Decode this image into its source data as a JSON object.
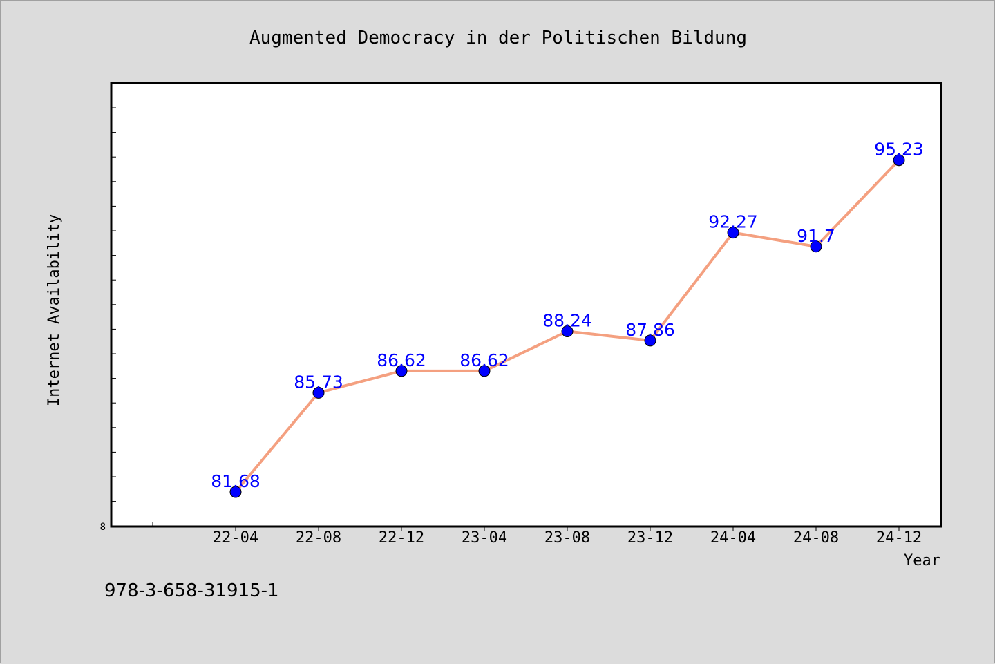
{
  "chart_data": {
    "type": "line",
    "title": "Augmented Democracy in der Politischen Bildung",
    "xlabel": "Year",
    "ylabel": "Internet Availability",
    "categories": [
      "22-04",
      "22-08",
      "22-12",
      "23-04",
      "23-08",
      "23-12",
      "24-04",
      "24-08",
      "24-12"
    ],
    "series": [
      {
        "values": [
          81.68,
          85.73,
          86.62,
          86.62,
          88.24,
          87.86,
          92.27,
          91.7,
          95.23
        ],
        "labels": [
          "81.68",
          "85.73",
          "86.62",
          "86.62",
          "88.24",
          "87.86",
          "92.27",
          "91.7",
          "95.23"
        ]
      }
    ],
    "ylim": [
      80.27,
      98.38
    ],
    "y_tick_labels": [
      "8"
    ],
    "grid": false,
    "legend": "none",
    "colors": {
      "line": "#f4a080",
      "marker": "#0000ff",
      "data_label": "#0000ff",
      "plot_background": "#ffffff",
      "page_background": "#dcdcdc"
    }
  },
  "footer": {
    "isbn": "978-3-658-31915-1"
  }
}
